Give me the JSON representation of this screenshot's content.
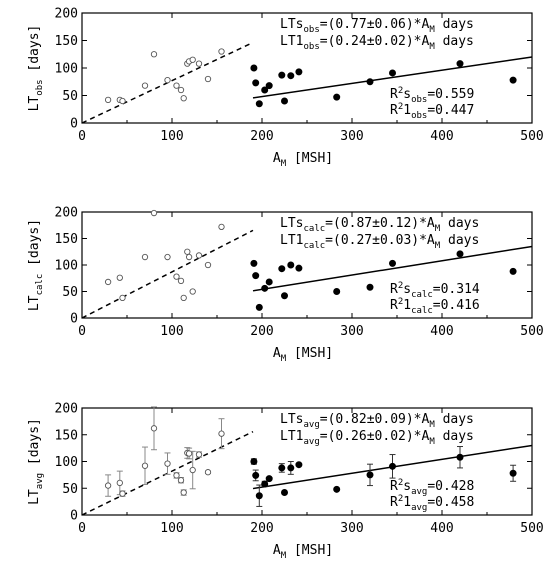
{
  "chart_data": [
    {
      "type": "scatter",
      "xlabel_main": "A",
      "xlabel_sub": "M",
      "xlabel_rest": " [MSH]",
      "ylabel_main": "LT",
      "ylabel_sub": "obs",
      "ylabel_unit": "[days]",
      "xlim": [
        0,
        500
      ],
      "ylim": [
        0,
        200
      ],
      "xticks": [
        "0",
        "100",
        "200",
        "300",
        "400",
        "500"
      ],
      "yticks": [
        "0",
        "50",
        "100",
        "150",
        "200"
      ],
      "series": [
        {
          "marker": "open-circle",
          "points": [
            [
              29,
              42
            ],
            [
              42,
              42
            ],
            [
              45,
              40
            ],
            [
              70,
              68
            ],
            [
              80,
              125
            ],
            [
              95,
              78
            ],
            [
              105,
              68
            ],
            [
              110,
              60
            ],
            [
              113,
              45
            ],
            [
              117,
              108
            ],
            [
              119,
              112
            ],
            [
              123,
              115
            ],
            [
              130,
              108
            ],
            [
              140,
              80
            ],
            [
              155,
              130
            ]
          ]
        },
        {
          "marker": "filled-circle",
          "points": [
            [
              191,
              100
            ],
            [
              193,
              73
            ],
            [
              197,
              35
            ],
            [
              203,
              60
            ],
            [
              208,
              68
            ],
            [
              222,
              87
            ],
            [
              225,
              40
            ],
            [
              232,
              86
            ],
            [
              241,
              93
            ],
            [
              283,
              47
            ],
            [
              320,
              75
            ],
            [
              345,
              91
            ],
            [
              420,
              108
            ],
            [
              479,
              78
            ]
          ]
        }
      ],
      "fit_lines": [
        {
          "style": "dashed",
          "slope": 0.77,
          "x": [
            0,
            190
          ]
        },
        {
          "style": "solid",
          "slope": 0.24,
          "x": [
            190,
            500
          ]
        }
      ],
      "annotation": {
        "line1_pre": "LTs",
        "line1_sub": "obs",
        "line1_post": "=(0.77±0.06)*A",
        "line1_sub2": "M",
        "line1_end": " days",
        "line2_pre": "LT1",
        "line2_sub": "obs",
        "line2_post": "=(0.24±0.02)*A",
        "line2_sub2": "M",
        "line2_end": " days",
        "r1_pre": "R",
        "r1_sup": "2",
        "r1_mid": "s",
        "r1_sub": "obs",
        "r1_val": "=0.559",
        "r2_pre": "R",
        "r2_sup": "2",
        "r2_mid": "1",
        "r2_sub": "obs",
        "r2_val": "=0.447"
      }
    },
    {
      "type": "scatter",
      "xlabel_main": "A",
      "xlabel_sub": "M",
      "xlabel_rest": " [MSH]",
      "ylabel_main": "LT",
      "ylabel_sub": "calc",
      "ylabel_unit": "[days]",
      "xlim": [
        0,
        500
      ],
      "ylim": [
        0,
        200
      ],
      "xticks": [
        "0",
        "100",
        "200",
        "300",
        "400",
        "500"
      ],
      "yticks": [
        "0",
        "50",
        "100",
        "150",
        "200"
      ],
      "series": [
        {
          "marker": "open-circle",
          "points": [
            [
              29,
              68
            ],
            [
              42,
              76
            ],
            [
              45,
              38
            ],
            [
              70,
              115
            ],
            [
              80,
              198
            ],
            [
              95,
              115
            ],
            [
              105,
              78
            ],
            [
              110,
              70
            ],
            [
              113,
              38
            ],
            [
              117,
              125
            ],
            [
              119,
              115
            ],
            [
              123,
              50
            ],
            [
              130,
              118
            ],
            [
              140,
              100
            ],
            [
              155,
              172
            ]
          ]
        },
        {
          "marker": "filled-circle",
          "points": [
            [
              191,
              103
            ],
            [
              193,
              80
            ],
            [
              197,
              20
            ],
            [
              203,
              56
            ],
            [
              208,
              68
            ],
            [
              222,
              93
            ],
            [
              225,
              42
            ],
            [
              232,
              100
            ],
            [
              241,
              94
            ],
            [
              283,
              50
            ],
            [
              320,
              58
            ],
            [
              345,
              103
            ],
            [
              420,
              121
            ],
            [
              479,
              88
            ]
          ]
        }
      ],
      "fit_lines": [
        {
          "style": "dashed",
          "slope": 0.87,
          "x": [
            0,
            190
          ]
        },
        {
          "style": "solid",
          "slope": 0.27,
          "x": [
            190,
            500
          ]
        }
      ],
      "annotation": {
        "line1_pre": "LTs",
        "line1_sub": "calc",
        "line1_post": "=(0.87±0.12)*A",
        "line1_sub2": "M",
        "line1_end": " days",
        "line2_pre": "LT1",
        "line2_sub": "calc",
        "line2_post": "=(0.27±0.03)*A",
        "line2_sub2": "M",
        "line2_end": " days",
        "r1_pre": "R",
        "r1_sup": "2",
        "r1_mid": "s",
        "r1_sub": "calc",
        "r1_val": "=0.314",
        "r2_pre": "R",
        "r2_sup": "2",
        "r2_mid": "1",
        "r2_sub": "calc",
        "r2_val": "=0.416"
      }
    },
    {
      "type": "scatter",
      "xlabel_main": "A",
      "xlabel_sub": "M",
      "xlabel_rest": " [MSH]",
      "ylabel_main": "LT",
      "ylabel_sub": "avg",
      "ylabel_unit": "[days]",
      "xlim": [
        0,
        500
      ],
      "ylim": [
        0,
        200
      ],
      "xticks": [
        "0",
        "100",
        "200",
        "300",
        "400",
        "500"
      ],
      "yticks": [
        "0",
        "50",
        "100",
        "150",
        "200"
      ],
      "series": [
        {
          "marker": "open-circle-errorbar",
          "points": [
            [
              29,
              55,
              20
            ],
            [
              42,
              60,
              22
            ],
            [
              45,
              40,
              5
            ],
            [
              70,
              92,
              35
            ],
            [
              80,
              162,
              40
            ],
            [
              95,
              96,
              20
            ],
            [
              105,
              74,
              5
            ],
            [
              110,
              65,
              5
            ],
            [
              113,
              42,
              5
            ],
            [
              117,
              116,
              10
            ],
            [
              119,
              115,
              10
            ],
            [
              123,
              84,
              35
            ],
            [
              130,
              113,
              5
            ],
            [
              140,
              80,
              2
            ],
            [
              155,
              152,
              28
            ]
          ]
        },
        {
          "marker": "filled-circle-errorbar",
          "points": [
            [
              191,
              100,
              5
            ],
            [
              193,
              74,
              10
            ],
            [
              197,
              36,
              20
            ],
            [
              203,
              58,
              5
            ],
            [
              208,
              68,
              2
            ],
            [
              222,
              88,
              8
            ],
            [
              225,
              42,
              2
            ],
            [
              232,
              88,
              12
            ],
            [
              241,
              94,
              2
            ],
            [
              283,
              48,
              2
            ],
            [
              320,
              75,
              20
            ],
            [
              345,
              91,
              22
            ],
            [
              420,
              108,
              20
            ],
            [
              479,
              78,
              15
            ]
          ]
        }
      ],
      "fit_lines": [
        {
          "style": "dashed",
          "slope": 0.82,
          "x": [
            0,
            190
          ]
        },
        {
          "style": "solid",
          "slope": 0.26,
          "x": [
            190,
            500
          ]
        }
      ],
      "annotation": {
        "line1_pre": "LTs",
        "line1_sub": "avg",
        "line1_post": "=(0.82±0.09)*A",
        "line1_sub2": "M",
        "line1_end": " days",
        "line2_pre": "LT1",
        "line2_sub": "avg",
        "line2_post": "=(0.26±0.02)*A",
        "line2_sub2": "M",
        "line2_end": " days",
        "r1_pre": "R",
        "r1_sup": "2",
        "r1_mid": "s",
        "r1_sub": "avg",
        "r1_val": "=0.428",
        "r2_pre": "R",
        "r2_sup": "2",
        "r2_mid": "1",
        "r2_sub": "avg",
        "r2_val": "=0.458"
      }
    }
  ]
}
